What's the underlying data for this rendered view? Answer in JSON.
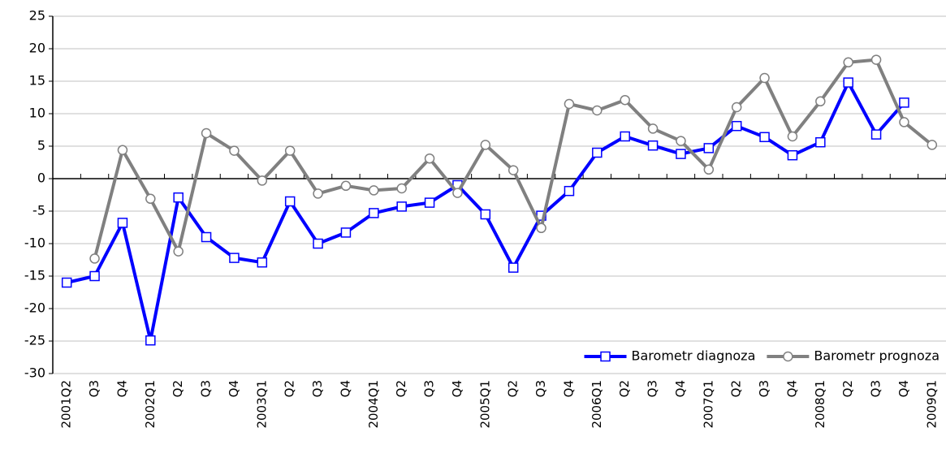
{
  "chart_data": {
    "type": "line",
    "categories": [
      "2001Q2",
      "Q3",
      "Q4",
      "2002Q1",
      "Q2",
      "Q3",
      "Q4",
      "2003Q1",
      "Q2",
      "Q3",
      "Q4",
      "2004Q1",
      "Q2",
      "Q3",
      "Q4",
      "2005Q1",
      "Q2",
      "Q3",
      "Q4",
      "2006Q1",
      "Q2",
      "Q3",
      "Q4",
      "2007Q1",
      "Q2",
      "Q3",
      "Q4",
      "2008Q1",
      "Q2",
      "Q3",
      "Q4",
      "2009Q1"
    ],
    "series": [
      {
        "name": "Barometr diagnoza",
        "color": "#0000ff",
        "marker": "square",
        "values": [
          -16,
          -15,
          -6.8,
          -24.9,
          -2.9,
          -9,
          -12.2,
          -12.9,
          -3.5,
          -10,
          -8.3,
          -5.3,
          -4.3,
          -3.7,
          -1,
          -5.5,
          -13.7,
          -5.7,
          -1.9,
          4,
          6.5,
          5.1,
          3.8,
          4.7,
          8.1,
          6.4,
          3.6,
          5.6,
          14.8,
          6.8,
          11.7,
          null
        ]
      },
      {
        "name": "Barometr prognoza",
        "color": "#808080",
        "marker": "circle",
        "values": [
          null,
          -12.3,
          4.4,
          -3.1,
          -11.2,
          7,
          4.3,
          -0.3,
          4.3,
          -2.3,
          -1.1,
          -1.8,
          -1.5,
          3.1,
          -2.2,
          5.2,
          1.3,
          -7.6,
          11.5,
          10.5,
          12.1,
          7.7,
          5.8,
          1.4,
          11,
          15.5,
          6.5,
          11.9,
          17.9,
          18.3,
          8.7,
          5.2
        ]
      }
    ],
    "ylim": [
      -30,
      25
    ],
    "yticks": [
      -30,
      -25,
      -20,
      -15,
      -10,
      -5,
      0,
      5,
      10,
      15,
      20,
      25
    ],
    "grid": true,
    "legend": "bottom-right"
  }
}
